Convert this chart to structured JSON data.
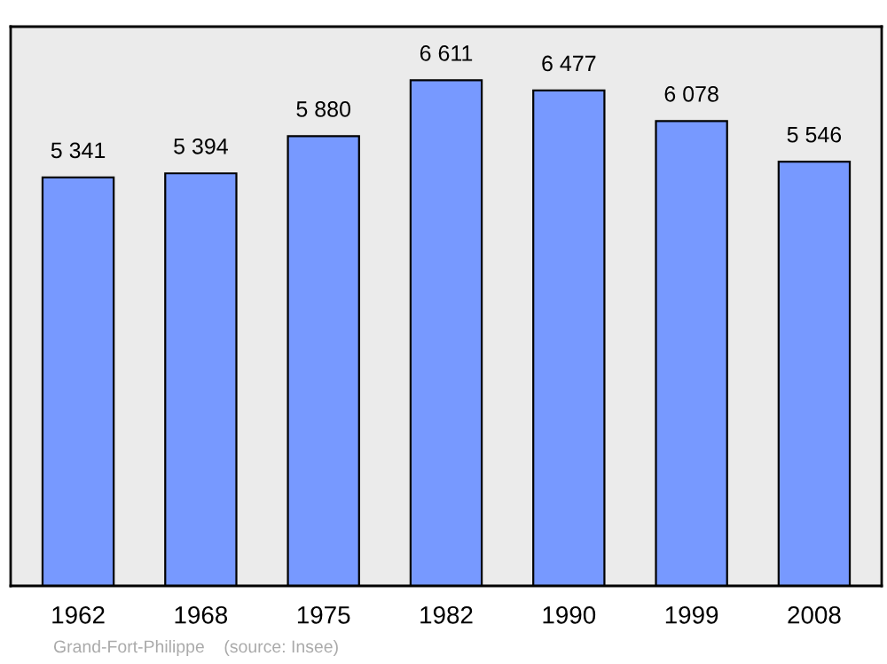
{
  "chart_data": {
    "type": "bar",
    "categories": [
      "1962",
      "1968",
      "1975",
      "1982",
      "1990",
      "1999",
      "2008"
    ],
    "values": [
      5341,
      5394,
      5880,
      6611,
      6477,
      6078,
      5546
    ],
    "color": "#7799ff",
    "value_labels": [
      "5 341",
      "5 394",
      "5 880",
      "6 611",
      "6 477",
      "6 078",
      "5 546"
    ],
    "annotations": [
      "Grand-Fort-Philippe    (source: Insee)"
    ],
    "tick_labels": "x"
  }
}
